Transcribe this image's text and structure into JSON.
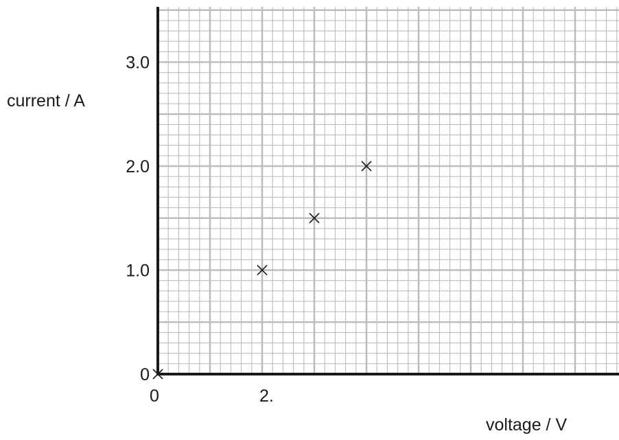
{
  "chart_data": {
    "type": "scatter",
    "xlabel": "voltage / V",
    "ylabel": "current / A",
    "xlim": [
      0,
      8.8
    ],
    "ylim": [
      0,
      3.5
    ],
    "x_ticks": [
      {
        "value": 0,
        "label": "0"
      },
      {
        "value": 2,
        "label": "2."
      }
    ],
    "y_ticks": [
      {
        "value": 0,
        "label": "0"
      },
      {
        "value": 1,
        "label": "1.0"
      },
      {
        "value": 2,
        "label": "2.0"
      },
      {
        "value": 3,
        "label": "3.0"
      }
    ],
    "grid": true,
    "series": [
      {
        "marker": "x",
        "points": [
          {
            "x": 0,
            "y": 0
          },
          {
            "x": 2,
            "y": 1.0
          },
          {
            "x": 3,
            "y": 1.5
          },
          {
            "x": 4,
            "y": 2.0
          }
        ]
      }
    ],
    "colors": {
      "grid": "#bdbdbd",
      "axis": "#1a1a1a",
      "marker": "#1a1a1a"
    }
  }
}
